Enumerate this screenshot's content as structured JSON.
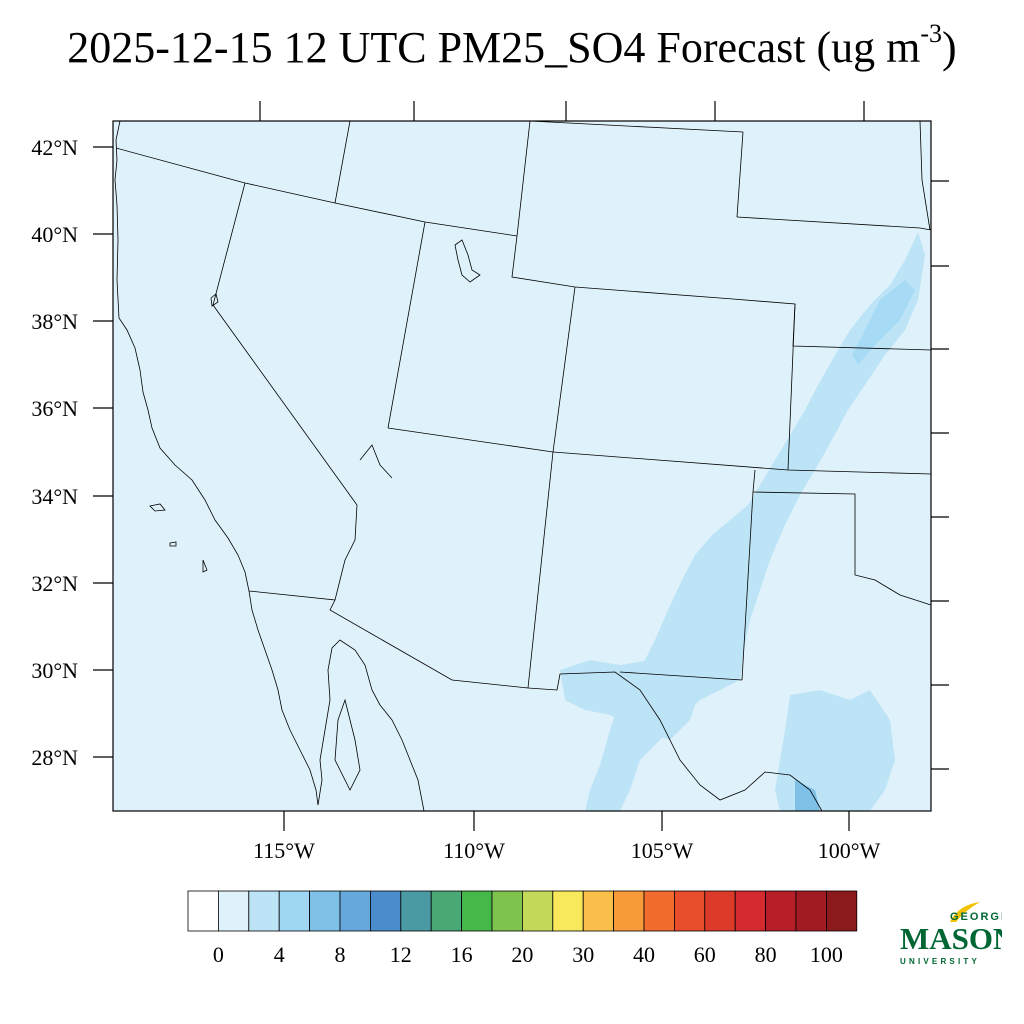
{
  "title": {
    "text": "2025-12-15 12 UTC PM25_SO4 Forecast (ug m",
    "superscript": "-3",
    "suffix": ")"
  },
  "map": {
    "background_color": "#dff2fb",
    "lat_labels": [
      "42°N",
      "40°N",
      "38°N",
      "36°N",
      "34°N",
      "32°N",
      "30°N",
      "28°N"
    ],
    "lon_labels": [
      "115°W",
      "110°W",
      "105°W",
      "100°W"
    ]
  },
  "colorbar": {
    "colors": [
      "#ffffff",
      "#dff2fb",
      "#bde4f6",
      "#9ed6f3",
      "#7fc0e6",
      "#66a8dc",
      "#4a8ccc",
      "#4a9aa3",
      "#4aa876",
      "#45b849",
      "#7fc34f",
      "#c4d85a",
      "#f7e85c",
      "#f8c04a",
      "#f79a3a",
      "#f26b2f",
      "#e84e2d",
      "#dc3b2a",
      "#d42a2f",
      "#b61f28",
      "#a11c22",
      "#8c1a1c"
    ],
    "labels": [
      "0",
      "4",
      "8",
      "12",
      "16",
      "20",
      "30",
      "40",
      "60",
      "80",
      "100"
    ]
  },
  "logo": {
    "line1": "GEORGE",
    "line2": "MASON",
    "line3": "UNIVERSITY",
    "color": "#006633",
    "accent": "#f2c200"
  }
}
